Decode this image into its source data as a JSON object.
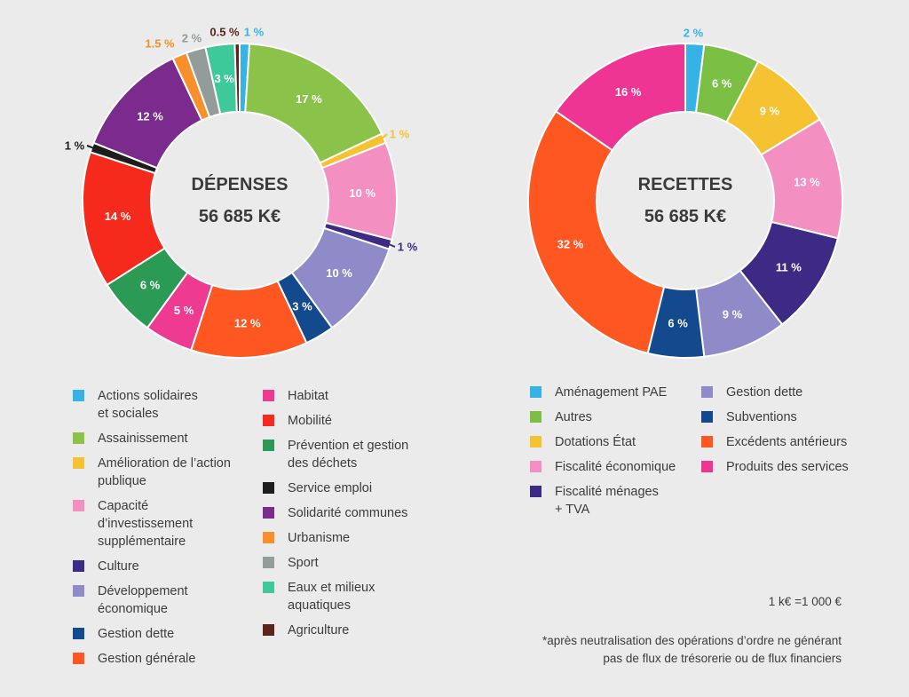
{
  "chart_data": [
    {
      "type": "pie",
      "title": "DÉPENSES",
      "total": "56 685 K€",
      "slices": [
        {
          "label": "Actions solidaires\net sociales",
          "value": 1,
          "value_label": "1 %",
          "color": "#36b3e6"
        },
        {
          "label": "Assainissement",
          "value": 17,
          "value_label": "17 %",
          "color": "#8bc34a"
        },
        {
          "label": "Amélioration de l’action\npublique",
          "value": 1,
          "value_label": "1 %",
          "color": "#f5c232"
        },
        {
          "label": "Capacité\nd’investissement\nsupplémentaire",
          "value": 10,
          "value_label": "10 %",
          "color": "#f48fc1"
        },
        {
          "label": "Culture",
          "value": 1,
          "value_label": "1 %",
          "color": "#3d2a85"
        },
        {
          "label": "Développement\néconomique",
          "value": 10,
          "value_label": "10 %",
          "color": "#8f8bc8"
        },
        {
          "label": "Gestion dette",
          "value": 3,
          "value_label": "3 %",
          "color": "#134a8e"
        },
        {
          "label": "Gestion générale",
          "value": 12,
          "value_label": "12 %",
          "color": "#ff5722"
        },
        {
          "label": "Habitat",
          "value": 5,
          "value_label": "5 %",
          "color": "#ef3a91"
        },
        {
          "label": "Prévention et gestion\ndes déchets",
          "value": 6,
          "value_label": "6 %",
          "color": "#2a9a55"
        },
        {
          "label": "Mobilité",
          "value": 14,
          "value_label": "14 %",
          "color": "#f52a1c"
        },
        {
          "label": "Service emploi",
          "value": 1,
          "value_label": "1 %",
          "color": "#1d1d1d"
        },
        {
          "label": "Solidarité communes",
          "value": 12,
          "value_label": "12 %",
          "color": "#7b2b8d"
        },
        {
          "label": "Urbanisme",
          "value": 1.5,
          "value_label": "1.5 %",
          "color": "#f7902a"
        },
        {
          "label": "Sport",
          "value": 2,
          "value_label": "2 %",
          "color": "#949b9b"
        },
        {
          "label": "Eaux et milieux\naquatiques",
          "value": 3,
          "value_label": "3 %",
          "color": "#3ec99a"
        },
        {
          "label": "Agriculture",
          "value": 0.5,
          "value_label": "0.5 %",
          "color": "#5a2418"
        }
      ]
    },
    {
      "type": "pie",
      "title": "RECETTES",
      "total": "56 685 K€",
      "slices": [
        {
          "label": "Aménagement PAE",
          "value": 2,
          "value_label": "2 %",
          "color": "#36b3e6"
        },
        {
          "label": "Autres",
          "value": 6,
          "value_label": "6 %",
          "color": "#7cbf45"
        },
        {
          "label": "Dotations État",
          "value": 9,
          "value_label": "9 %",
          "color": "#f5c232"
        },
        {
          "label": "Fiscalité économique",
          "value": 13,
          "value_label": "13 %",
          "color": "#f48fc1"
        },
        {
          "label": "Fiscalité ménages\n+ TVA",
          "value": 11,
          "value_label": "11 %",
          "color": "#3d2a85"
        },
        {
          "label": "Gestion dette",
          "value": 9,
          "value_label": "9 %",
          "color": "#8f8bc8"
        },
        {
          "label": "Subventions",
          "value": 6,
          "value_label": "6 %",
          "color": "#134a8e"
        },
        {
          "label": "Excédents antérieurs",
          "value": 32,
          "value_label": "32 %",
          "color": "#ff5722"
        },
        {
          "label": "Produits des services",
          "value": 16,
          "value_label": "16 %",
          "color": "#ee3593"
        }
      ]
    }
  ],
  "legends": {
    "depenses": [
      [
        "Actions solidaires\net sociales",
        "Assainissement",
        "Amélioration de l’action\npublique",
        "Capacité\nd’investissement\nsupplémentaire",
        "Culture",
        "Développement\néconomique",
        "Gestion dette",
        "Gestion générale"
      ],
      [
        "Habitat",
        "Mobilité",
        "Prévention et gestion\ndes déchets",
        "Service emploi",
        "Solidarité communes",
        "Urbanisme",
        "Sport",
        "Eaux et milieux\naquatiques",
        "Agriculture"
      ]
    ],
    "recettes": [
      [
        "Aménagement PAE",
        "Autres",
        "Dotations État",
        "Fiscalité économique",
        "Fiscalité ménages\n+ TVA"
      ],
      [
        "Gestion dette",
        "Subventions",
        "Excédents antérieurs",
        "Produits des services"
      ]
    ]
  },
  "notes": {
    "unit": "1 k€ =1 000 €",
    "footnote": "*après neutralisation des opérations d’ordre ne générant\npas de flux de trésorerie ou de flux financiers"
  }
}
